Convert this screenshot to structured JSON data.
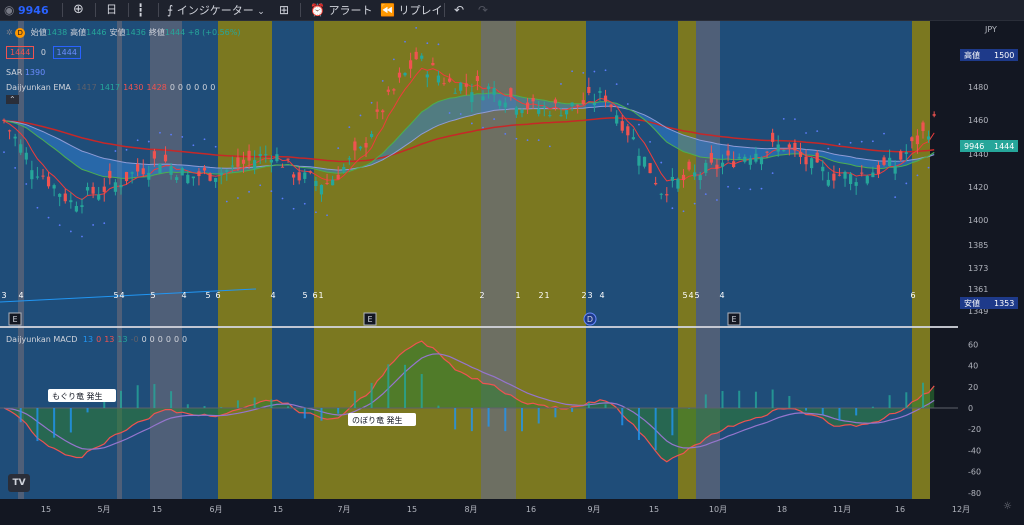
{
  "toolbar": {
    "symbol": "9946",
    "interval": "日",
    "indicators_label": "インジケーター",
    "alert_label": "アラート",
    "replay_label": "リプレイ"
  },
  "legend": {
    "ohlc": [
      {
        "label": "始値",
        "value": "1438"
      },
      {
        "label": "高値",
        "value": "1446"
      },
      {
        "label": "安値",
        "value": "1436"
      },
      {
        "label": "終値",
        "value": "1444"
      }
    ],
    "change": "+8 (+0.56%)",
    "sell_price": "1444",
    "spread": "0",
    "buy_price": "1444",
    "sar_label": "SAR",
    "sar_value": "1390",
    "ema_label": "Daijyunkan EMA",
    "ema_values": [
      "1417",
      "1417",
      "1430",
      "1428",
      "0",
      "0",
      "0",
      "0",
      "0",
      "0"
    ],
    "macd_label": "Daijyunkan MACD",
    "macd_values": [
      "13",
      "0",
      "13",
      "13",
      "-0",
      "0",
      "0",
      "0",
      "0",
      "0",
      "0"
    ]
  },
  "price_axis": {
    "currency": "JPY",
    "ticks": [
      "1480",
      "1460",
      "1440",
      "1420",
      "1400",
      "1385",
      "1373",
      "1361",
      "1349"
    ],
    "high_label": "高値",
    "high_value": "1500",
    "current_symbol": "9946",
    "current_value": "1444",
    "low_label": "安値",
    "low_value": "1353"
  },
  "macd_axis": {
    "ticks": [
      "60",
      "40",
      "20",
      "0",
      "-20",
      "-40",
      "-60",
      "-80"
    ]
  },
  "time_axis": {
    "labels": [
      "15",
      "5月",
      "15",
      "6月",
      "15",
      "7月",
      "15",
      "8月",
      "16",
      "9月",
      "15",
      "10月",
      "18",
      "11月",
      "16",
      "12月"
    ]
  },
  "annotations": {
    "modori": "もぐり竜 発生",
    "nobori": "のぼり竜 発生"
  },
  "count_markers": [
    "3",
    "4",
    "5",
    "4",
    "5",
    "4",
    "5",
    "6",
    "4",
    "5",
    "6",
    "1",
    "2",
    "1",
    "2",
    "1",
    "2",
    "3",
    "4",
    "5",
    "4",
    "5",
    "4",
    "6"
  ],
  "event_markers": [
    "E",
    "E",
    "D",
    "E"
  ],
  "colors": {
    "bull": "#26a69a",
    "bear": "#ef5350",
    "bg": "#131722",
    "blue_band": "#1f4e7a",
    "yellow_band": "#7d7a1f"
  }
}
